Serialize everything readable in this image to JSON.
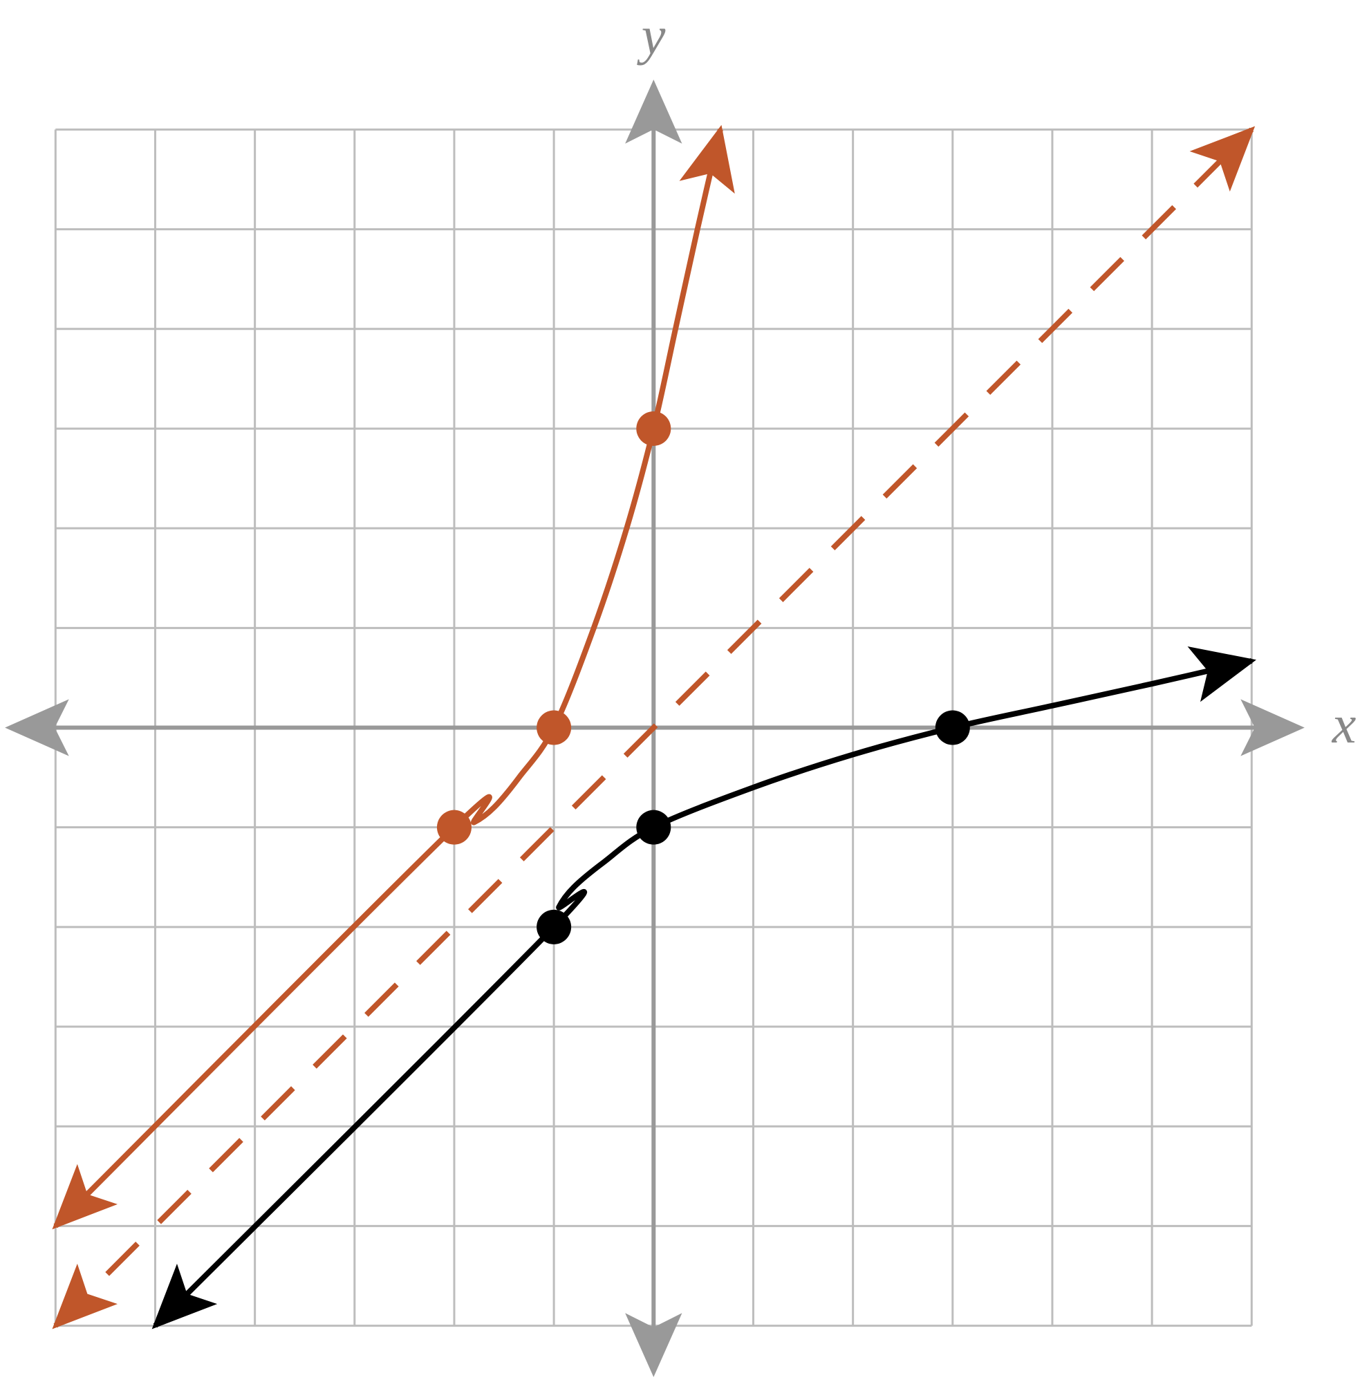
{
  "chart_data": {
    "type": "line",
    "x_label": "x",
    "y_label": "y",
    "xlim": [
      -6,
      6
    ],
    "ylim": [
      -6,
      6
    ],
    "xticks": [
      -6,
      -5,
      -4,
      -3,
      -2,
      -1,
      0,
      1,
      2,
      3,
      4,
      5,
      6
    ],
    "yticks": [
      -6,
      -5,
      -4,
      -3,
      -2,
      -1,
      0,
      1,
      2,
      3,
      4,
      5,
      6
    ],
    "grid": true,
    "series": [
      {
        "color": "#000000",
        "dashed": false,
        "x": [
          -5,
          -1,
          -0.95,
          -0.8,
          -0.5,
          0,
          1,
          2,
          3,
          4,
          5,
          6
        ],
        "values": [
          -6,
          -2,
          -1.8,
          -1.6,
          -1.35,
          -1,
          -0.6,
          -0.27,
          0,
          0.22,
          0.44,
          0.67
        ],
        "points": {
          "x": [
            -1,
            0,
            3
          ],
          "values": [
            -2,
            -1,
            0
          ]
        }
      },
      {
        "color": "#c0562a",
        "dashed": false,
        "x": [
          -6,
          -2,
          -1.8,
          -1.6,
          -1.35,
          -1,
          -0.6,
          -0.27,
          0,
          0.22,
          0.44,
          0.67
        ],
        "values": [
          -5,
          -1,
          -0.95,
          -0.8,
          -0.5,
          0,
          1,
          2,
          3,
          4,
          5,
          6
        ],
        "points": {
          "x": [
            -2,
            -1,
            0
          ],
          "values": [
            -1,
            0,
            3
          ]
        }
      },
      {
        "color": "#c0562a",
        "dashed": true,
        "x": [
          -6,
          6
        ],
        "values": [
          -6,
          6
        ]
      }
    ]
  }
}
